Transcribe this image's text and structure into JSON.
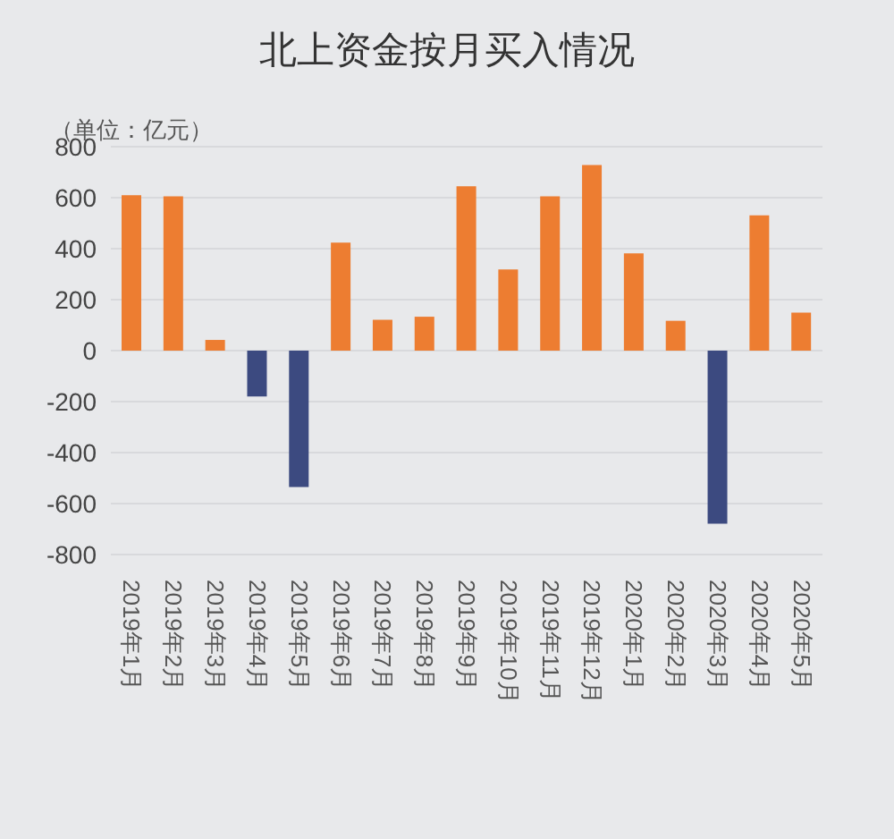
{
  "chart_data": {
    "type": "bar",
    "title": "北上资金按月买入情况",
    "ylabel": "（单位：亿元）",
    "categories": [
      "2019年1月",
      "2019年2月",
      "2019年3月",
      "2019年4月",
      "2019年5月",
      "2019年6月",
      "2019年7月",
      "2019年8月",
      "2019年9月",
      "2019年10月",
      "2019年11月",
      "2019年12月",
      "2020年1月",
      "2020年2月",
      "2020年3月",
      "2020年4月",
      "2020年5月"
    ],
    "values": [
      610,
      605,
      42,
      -180,
      -535,
      424,
      121,
      133,
      645,
      318,
      605,
      728,
      382,
      117,
      -679,
      531,
      149
    ],
    "colors": [
      "#ed7d31",
      "#ed7d31",
      "#ed7d31",
      "#3c4a80",
      "#3c4a80",
      "#ed7d31",
      "#ed7d31",
      "#ed7d31",
      "#ed7d31",
      "#ed7d31",
      "#ed7d31",
      "#ed7d31",
      "#ed7d31",
      "#ed7d31",
      "#3c4a80",
      "#ed7d31",
      "#ed7d31"
    ],
    "ylim": [
      -800,
      800
    ],
    "yticks": [
      -800,
      -600,
      -400,
      -200,
      0,
      200,
      400,
      600,
      800
    ],
    "grid": "y"
  }
}
